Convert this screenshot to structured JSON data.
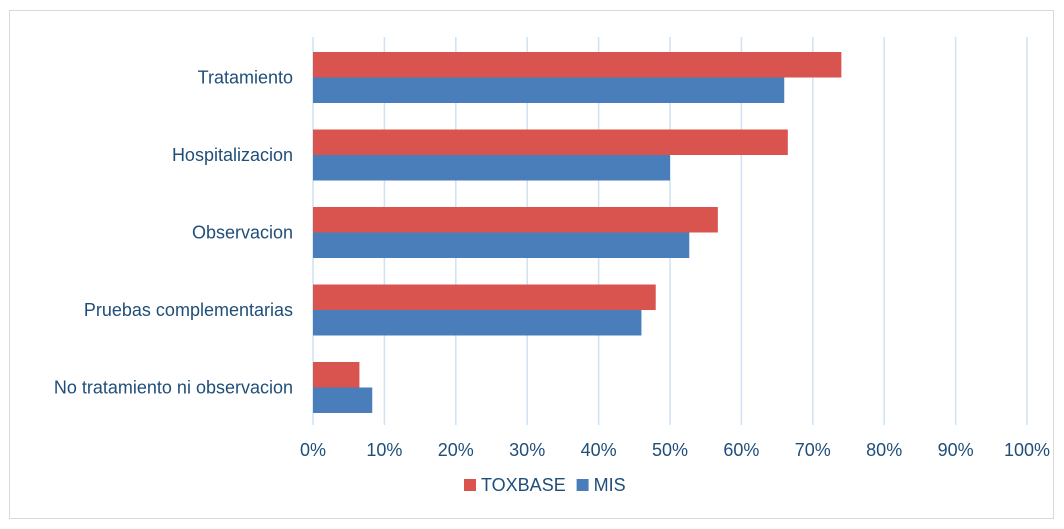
{
  "chart_data": {
    "type": "bar",
    "orientation": "horizontal",
    "title": "",
    "xlabel": "",
    "ylabel": "",
    "categories": [
      "Tratamiento",
      "Hospitalizacion",
      "Observacion",
      "Pruebas complementarias",
      "No tratamiento ni observacion"
    ],
    "series": [
      {
        "name": "TOXBASE",
        "color": "#d9534f",
        "values": [
          74,
          66.5,
          56.7,
          48,
          6.5
        ]
      },
      {
        "name": "MIS",
        "color": "#4a7ebb",
        "values": [
          66,
          50,
          52.7,
          46,
          8.3
        ]
      }
    ],
    "xlim": [
      0,
      100
    ],
    "x_ticks": [
      0,
      10,
      20,
      30,
      40,
      50,
      60,
      70,
      80,
      90,
      100
    ],
    "x_tick_labels": [
      "0%",
      "10%",
      "20%",
      "30%",
      "40%",
      "50%",
      "60%",
      "70%",
      "80%",
      "90%",
      "100%"
    ],
    "grid": true,
    "legend_position": "bottom"
  }
}
